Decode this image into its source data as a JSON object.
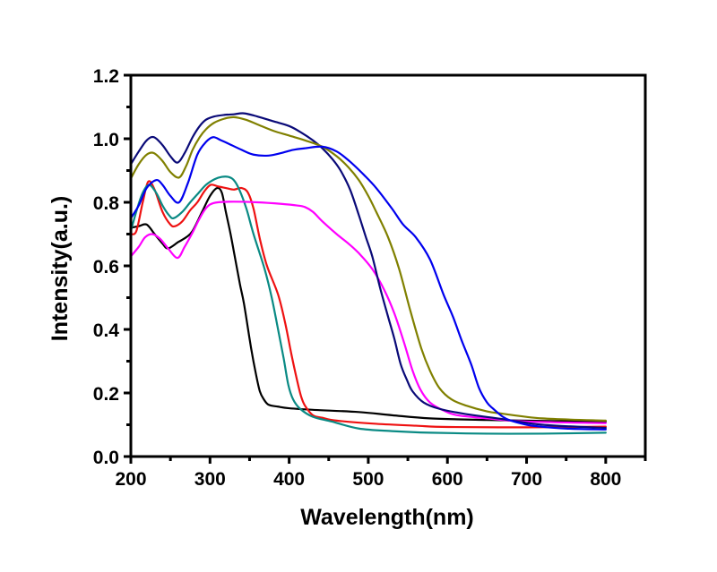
{
  "chart_data": {
    "type": "line",
    "title": "",
    "xlabel": "Wavelength(nm)",
    "ylabel": "Intensity(a.u.)",
    "xlim": [
      200,
      850
    ],
    "ylim": [
      0.0,
      1.2
    ],
    "x_ticks": [
      200,
      300,
      400,
      500,
      600,
      700,
      800
    ],
    "x_tick_labels": [
      "200",
      "300",
      "400",
      "500",
      "600",
      "700",
      "800"
    ],
    "x_minor_ticks": [
      250,
      350,
      450,
      550,
      650,
      750,
      850
    ],
    "y_ticks": [
      0.0,
      0.2,
      0.4,
      0.6,
      0.8,
      1.0,
      1.2
    ],
    "y_tick_labels": [
      "0.0",
      "0.2",
      "0.4",
      "0.6",
      "0.8",
      "1.0",
      "1.2"
    ],
    "y_minor_ticks": [
      0.1,
      0.3,
      0.5,
      0.7,
      0.9,
      1.1
    ],
    "grid": false,
    "legend": null,
    "series": [
      {
        "name": "black",
        "color": "#000000",
        "points": [
          [
            200,
            0.72
          ],
          [
            210,
            0.725
          ],
          [
            220,
            0.73
          ],
          [
            230,
            0.7
          ],
          [
            240,
            0.67
          ],
          [
            247,
            0.655
          ],
          [
            260,
            0.675
          ],
          [
            270,
            0.69
          ],
          [
            278,
            0.71
          ],
          [
            290,
            0.77
          ],
          [
            300,
            0.82
          ],
          [
            309,
            0.845
          ],
          [
            315,
            0.83
          ],
          [
            320,
            0.77
          ],
          [
            326,
            0.7
          ],
          [
            332,
            0.62
          ],
          [
            338,
            0.54
          ],
          [
            343,
            0.48
          ],
          [
            352,
            0.34
          ],
          [
            358,
            0.26
          ],
          [
            363,
            0.205
          ],
          [
            368,
            0.18
          ],
          [
            374,
            0.163
          ],
          [
            386,
            0.157
          ],
          [
            400,
            0.152
          ],
          [
            430,
            0.147
          ],
          [
            488,
            0.14
          ],
          [
            530,
            0.13
          ],
          [
            578,
            0.12
          ],
          [
            650,
            0.115
          ],
          [
            720,
            0.112
          ],
          [
            800,
            0.11
          ]
        ]
      },
      {
        "name": "red",
        "color": "#ee1111",
        "points": [
          [
            200,
            0.7
          ],
          [
            207,
            0.71
          ],
          [
            215,
            0.8
          ],
          [
            222,
            0.865
          ],
          [
            230,
            0.84
          ],
          [
            240,
            0.77
          ],
          [
            250,
            0.73
          ],
          [
            256,
            0.725
          ],
          [
            265,
            0.74
          ],
          [
            275,
            0.775
          ],
          [
            284,
            0.8
          ],
          [
            293,
            0.835
          ],
          [
            301,
            0.855
          ],
          [
            310,
            0.85
          ],
          [
            320,
            0.845
          ],
          [
            330,
            0.84
          ],
          [
            340,
            0.845
          ],
          [
            348,
            0.83
          ],
          [
            355,
            0.78
          ],
          [
            363,
            0.685
          ],
          [
            372,
            0.6
          ],
          [
            386,
            0.51
          ],
          [
            395,
            0.42
          ],
          [
            403,
            0.32
          ],
          [
            410,
            0.24
          ],
          [
            415,
            0.19
          ],
          [
            420,
            0.16
          ],
          [
            430,
            0.13
          ],
          [
            442,
            0.122
          ],
          [
            460,
            0.113
          ],
          [
            510,
            0.103
          ],
          [
            560,
            0.097
          ],
          [
            601,
            0.093
          ],
          [
            700,
            0.092
          ],
          [
            800,
            0.094
          ]
        ]
      },
      {
        "name": "teal",
        "color": "#0a8a84",
        "points": [
          [
            200,
            0.71
          ],
          [
            208,
            0.78
          ],
          [
            215,
            0.83
          ],
          [
            223,
            0.855
          ],
          [
            232,
            0.83
          ],
          [
            240,
            0.79
          ],
          [
            248,
            0.76
          ],
          [
            254,
            0.75
          ],
          [
            265,
            0.77
          ],
          [
            275,
            0.8
          ],
          [
            284,
            0.825
          ],
          [
            295,
            0.855
          ],
          [
            306,
            0.873
          ],
          [
            315,
            0.88
          ],
          [
            323,
            0.88
          ],
          [
            330,
            0.87
          ],
          [
            337,
            0.84
          ],
          [
            346,
            0.78
          ],
          [
            355,
            0.7
          ],
          [
            369,
            0.59
          ],
          [
            378,
            0.5
          ],
          [
            386,
            0.4
          ],
          [
            393,
            0.31
          ],
          [
            399,
            0.225
          ],
          [
            405,
            0.18
          ],
          [
            414,
            0.15
          ],
          [
            430,
            0.125
          ],
          [
            454,
            0.11
          ],
          [
            488,
            0.088
          ],
          [
            530,
            0.08
          ],
          [
            578,
            0.075
          ],
          [
            650,
            0.072
          ],
          [
            720,
            0.072
          ],
          [
            800,
            0.075
          ]
        ]
      },
      {
        "name": "magenta",
        "color": "#ff00ff",
        "points": [
          [
            200,
            0.63
          ],
          [
            210,
            0.66
          ],
          [
            218,
            0.69
          ],
          [
            227,
            0.7
          ],
          [
            237,
            0.685
          ],
          [
            247,
            0.655
          ],
          [
            259,
            0.625
          ],
          [
            268,
            0.66
          ],
          [
            278,
            0.705
          ],
          [
            286,
            0.745
          ],
          [
            293,
            0.775
          ],
          [
            300,
            0.793
          ],
          [
            310,
            0.8
          ],
          [
            330,
            0.802
          ],
          [
            360,
            0.8
          ],
          [
            390,
            0.795
          ],
          [
            410,
            0.79
          ],
          [
            420,
            0.785
          ],
          [
            430,
            0.77
          ],
          [
            442,
            0.74
          ],
          [
            460,
            0.7
          ],
          [
            475,
            0.67
          ],
          [
            488,
            0.64
          ],
          [
            505,
            0.59
          ],
          [
            520,
            0.525
          ],
          [
            533,
            0.45
          ],
          [
            545,
            0.36
          ],
          [
            556,
            0.27
          ],
          [
            566,
            0.21
          ],
          [
            578,
            0.17
          ],
          [
            595,
            0.145
          ],
          [
            612,
            0.13
          ],
          [
            650,
            0.12
          ],
          [
            700,
            0.11
          ],
          [
            800,
            0.105
          ]
        ]
      },
      {
        "name": "navy",
        "color": "#0a0a78",
        "points": [
          [
            200,
            0.92
          ],
          [
            210,
            0.96
          ],
          [
            220,
            0.995
          ],
          [
            229,
            1.005
          ],
          [
            240,
            0.98
          ],
          [
            250,
            0.945
          ],
          [
            259,
            0.925
          ],
          [
            268,
            0.955
          ],
          [
            278,
            1.005
          ],
          [
            287,
            1.04
          ],
          [
            295,
            1.06
          ],
          [
            305,
            1.07
          ],
          [
            318,
            1.075
          ],
          [
            330,
            1.077
          ],
          [
            343,
            1.08
          ],
          [
            360,
            1.07
          ],
          [
            380,
            1.055
          ],
          [
            400,
            1.04
          ],
          [
            415,
            1.02
          ],
          [
            430,
            0.995
          ],
          [
            442,
            0.97
          ],
          [
            455,
            0.935
          ],
          [
            465,
            0.9
          ],
          [
            477,
            0.84
          ],
          [
            488,
            0.76
          ],
          [
            497,
            0.69
          ],
          [
            505,
            0.63
          ],
          [
            515,
            0.53
          ],
          [
            525,
            0.44
          ],
          [
            533,
            0.37
          ],
          [
            541,
            0.29
          ],
          [
            549,
            0.24
          ],
          [
            556,
            0.205
          ],
          [
            570,
            0.17
          ],
          [
            590,
            0.15
          ],
          [
            620,
            0.135
          ],
          [
            669,
            0.118
          ],
          [
            720,
            0.1
          ],
          [
            800,
            0.09
          ]
        ]
      },
      {
        "name": "olive",
        "color": "#808000",
        "points": [
          [
            200,
            0.875
          ],
          [
            210,
            0.92
          ],
          [
            220,
            0.95
          ],
          [
            229,
            0.955
          ],
          [
            240,
            0.93
          ],
          [
            250,
            0.895
          ],
          [
            261,
            0.878
          ],
          [
            270,
            0.915
          ],
          [
            278,
            0.965
          ],
          [
            287,
            1.005
          ],
          [
            295,
            1.03
          ],
          [
            305,
            1.05
          ],
          [
            318,
            1.063
          ],
          [
            330,
            1.068
          ],
          [
            345,
            1.06
          ],
          [
            360,
            1.045
          ],
          [
            380,
            1.025
          ],
          [
            400,
            1.01
          ],
          [
            420,
            0.995
          ],
          [
            442,
            0.975
          ],
          [
            460,
            0.945
          ],
          [
            475,
            0.91
          ],
          [
            488,
            0.87
          ],
          [
            500,
            0.82
          ],
          [
            510,
            0.77
          ],
          [
            525,
            0.69
          ],
          [
            539,
            0.59
          ],
          [
            553,
            0.46
          ],
          [
            567,
            0.34
          ],
          [
            578,
            0.27
          ],
          [
            590,
            0.215
          ],
          [
            605,
            0.18
          ],
          [
            624,
            0.16
          ],
          [
            650,
            0.142
          ],
          [
            669,
            0.135
          ],
          [
            720,
            0.12
          ],
          [
            800,
            0.113
          ]
        ]
      },
      {
        "name": "blue",
        "color": "#0000ee",
        "points": [
          [
            200,
            0.75
          ],
          [
            210,
            0.79
          ],
          [
            220,
            0.845
          ],
          [
            232,
            0.87
          ],
          [
            240,
            0.855
          ],
          [
            250,
            0.82
          ],
          [
            261,
            0.8
          ],
          [
            272,
            0.86
          ],
          [
            284,
            0.95
          ],
          [
            295,
            0.99
          ],
          [
            304,
            1.005
          ],
          [
            314,
            0.995
          ],
          [
            323,
            0.985
          ],
          [
            340,
            0.965
          ],
          [
            355,
            0.95
          ],
          [
            374,
            0.947
          ],
          [
            390,
            0.955
          ],
          [
            405,
            0.965
          ],
          [
            420,
            0.97
          ],
          [
            442,
            0.975
          ],
          [
            460,
            0.96
          ],
          [
            476,
            0.93
          ],
          [
            495,
            0.885
          ],
          [
            510,
            0.845
          ],
          [
            530,
            0.78
          ],
          [
            544,
            0.73
          ],
          [
            560,
            0.69
          ],
          [
            578,
            0.62
          ],
          [
            595,
            0.51
          ],
          [
            607,
            0.44
          ],
          [
            618,
            0.365
          ],
          [
            630,
            0.29
          ],
          [
            640,
            0.215
          ],
          [
            650,
            0.17
          ],
          [
            658,
            0.15
          ],
          [
            670,
            0.125
          ],
          [
            680,
            0.113
          ],
          [
            700,
            0.1
          ],
          [
            714,
            0.095
          ],
          [
            750,
            0.088
          ],
          [
            800,
            0.085
          ]
        ]
      }
    ]
  }
}
